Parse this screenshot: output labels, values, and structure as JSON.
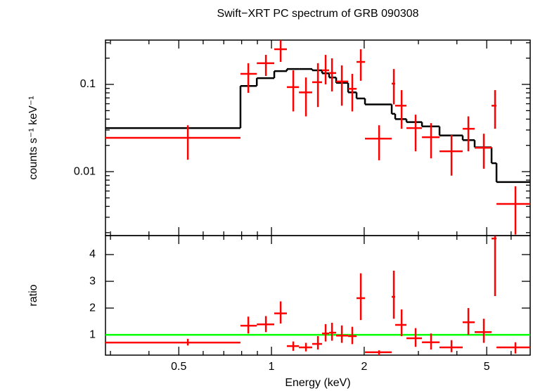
{
  "chart_data": [
    {
      "type": "errorbar",
      "title": "Swift−XRT PC spectrum of GRB 090308",
      "ylabel": "counts s⁻¹ keV⁻¹",
      "log_x": true,
      "log_y": true,
      "xlim": [
        0.289,
        6.92
      ],
      "xminorticks": [
        0.3,
        0.4,
        0.6,
        0.7,
        0.8,
        0.9,
        3,
        4,
        6
      ],
      "xticks": [
        0.5,
        1,
        2,
        5
      ],
      "ylim": [
        0.00185,
        0.322
      ],
      "yticks": [
        0.01,
        0.1
      ],
      "yminorticks": [
        0.002,
        0.003,
        0.004,
        0.005,
        0.006,
        0.007,
        0.008,
        0.009,
        0.02,
        0.03,
        0.04,
        0.05,
        0.06,
        0.07,
        0.08,
        0.09,
        0.2,
        0.3
      ],
      "series": [
        {
          "color": "#ff0000",
          "x": [
            0.535,
            0.841,
            0.959,
            1.071,
            1.177,
            1.294,
            1.415,
            1.499,
            1.572,
            1.692,
            1.83,
            1.95,
            2.236,
            2.496,
            2.646,
            2.938,
            3.298,
            3.842,
            4.358,
            4.892,
            5.321,
            6.198
          ],
          "x_low": [
            0.289,
            0.793,
            0.896,
            1.021,
            1.122,
            1.228,
            1.356,
            1.46,
            1.539,
            1.622,
            1.774,
            1.889,
            2.012,
            2.457,
            2.522,
            2.744,
            3.081,
            3.513,
            4.178,
            4.568,
            5.184,
            5.379
          ],
          "x_high": [
            0.793,
            0.896,
            1.021,
            1.122,
            1.228,
            1.356,
            1.46,
            1.539,
            1.622,
            1.774,
            1.889,
            2.012,
            2.457,
            2.522,
            2.744,
            3.081,
            3.513,
            4.178,
            4.568,
            5.184,
            5.379,
            6.92
          ],
          "values": [
            0.0244,
            0.132,
            0.175,
            0.253,
            0.093,
            0.081,
            0.106,
            0.145,
            0.135,
            0.108,
            0.089,
            0.181,
            0.0239,
            0.102,
            0.057,
            0.0316,
            0.0248,
            0.0171,
            0.031,
            0.0188,
            0.057,
            0.00426
          ],
          "values_low": [
            0.0137,
            0.08,
            0.125,
            0.181,
            0.049,
            0.043,
            0.055,
            0.1,
            0.083,
            0.057,
            0.049,
            0.11,
            0.0135,
            0.059,
            0.031,
            0.0171,
            0.0142,
            0.009,
            0.0171,
            0.0108,
            0.031,
            0.0019
          ],
          "values_high": [
            0.034,
            0.175,
            0.218,
            0.322,
            0.145,
            0.12,
            0.175,
            0.218,
            0.199,
            0.165,
            0.132,
            0.253,
            0.034,
            0.15,
            0.086,
            0.045,
            0.036,
            0.0262,
            0.043,
            0.0272,
            0.086,
            0.0068
          ]
        },
        {
          "color": "#000000",
          "bins": [
            0.289,
            0.793,
            0.896,
            1.021,
            1.122,
            1.228,
            1.356,
            1.46,
            1.539,
            1.622,
            1.774,
            1.889,
            2.012,
            2.457,
            2.522,
            2.744,
            3.081,
            3.513,
            4.178,
            4.568,
            5.184,
            5.379,
            6.92
          ],
          "values": [
            0.0316,
            0.096,
            0.118,
            0.142,
            0.15,
            0.15,
            0.145,
            0.134,
            0.12,
            0.104,
            0.081,
            0.069,
            0.059,
            0.046,
            0.04,
            0.037,
            0.033,
            0.026,
            0.023,
            0.019,
            0.0125,
            0.0076
          ]
        }
      ]
    },
    {
      "type": "ratio",
      "xlabel": "Energy (keV)",
      "ylabel": "ratio",
      "log_x": true,
      "xlim": [
        0.289,
        6.92
      ],
      "xticks": [
        0.5,
        1,
        2,
        5
      ],
      "xminorticks": [
        0.3,
        0.4,
        0.6,
        0.7,
        0.8,
        0.9,
        3,
        4,
        6
      ],
      "ylim": [
        0.24,
        4.71
      ],
      "yticks": [
        1,
        2,
        3,
        4
      ],
      "reference": 1,
      "reference_color": "#00ff00",
      "color": "#ff0000",
      "values": [
        0.71,
        1.34,
        1.39,
        1.8,
        0.58,
        0.53,
        0.66,
        1.05,
        1.08,
        0.97,
        0.95,
        2.37,
        0.35,
        2.42,
        1.37,
        0.87,
        0.72,
        0.53,
        1.47,
        1.1,
        4.6,
        0.53
      ],
      "values_low": [
        0.6,
        1.05,
        1.1,
        1.42,
        0.4,
        0.38,
        0.45,
        0.75,
        0.78,
        0.7,
        0.65,
        1.55,
        0.24,
        1.6,
        0.95,
        0.55,
        0.45,
        0.35,
        1.0,
        0.7,
        2.45,
        0.3
      ],
      "values_high": [
        0.85,
        1.68,
        1.7,
        2.25,
        0.75,
        0.7,
        0.95,
        1.4,
        1.45,
        1.35,
        1.3,
        3.3,
        0.42,
        3.4,
        1.95,
        1.25,
        1.05,
        0.8,
        2.0,
        1.6,
        4.7,
        0.72
      ]
    }
  ]
}
